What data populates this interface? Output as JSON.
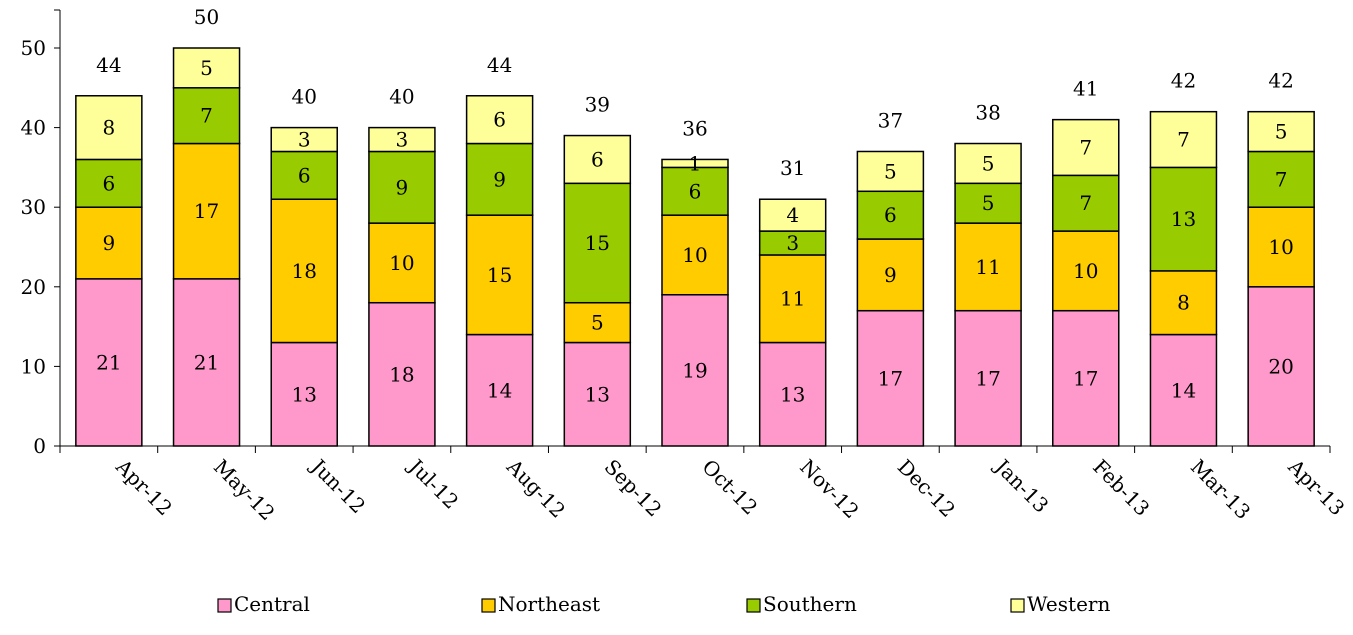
{
  "chart_data": {
    "type": "bar",
    "stacked": true,
    "title": "",
    "xlabel": "",
    "ylabel": "",
    "ylim": [
      0,
      55
    ],
    "yticks": [
      0,
      10,
      20,
      30,
      40,
      50
    ],
    "grid": false,
    "legend_position": "bottom",
    "categories": [
      "Apr-12",
      "May-12",
      "Jun-12",
      "Jul-12",
      "Aug-12",
      "Sep-12",
      "Oct-12",
      "Nov-12",
      "Dec-12",
      "Jan-13",
      "Feb-13",
      "Mar-13",
      "Apr-13"
    ],
    "series": [
      {
        "name": "Central",
        "color": "#ff99cc",
        "values": [
          21,
          21,
          13,
          18,
          14,
          13,
          19,
          13,
          17,
          17,
          17,
          14,
          20
        ]
      },
      {
        "name": "Northeast",
        "color": "#ffcc00",
        "values": [
          9,
          17,
          18,
          10,
          15,
          5,
          10,
          11,
          9,
          11,
          10,
          8,
          10
        ]
      },
      {
        "name": "Southern",
        "color": "#99cc00",
        "values": [
          6,
          7,
          6,
          9,
          9,
          15,
          6,
          3,
          6,
          5,
          7,
          13,
          7
        ]
      },
      {
        "name": "Western",
        "color": "#ffff99",
        "values": [
          8,
          5,
          3,
          3,
          6,
          6,
          1,
          4,
          5,
          5,
          7,
          7,
          5
        ]
      }
    ],
    "totals": [
      44,
      50,
      40,
      40,
      44,
      39,
      36,
      31,
      37,
      38,
      41,
      42,
      42
    ]
  }
}
